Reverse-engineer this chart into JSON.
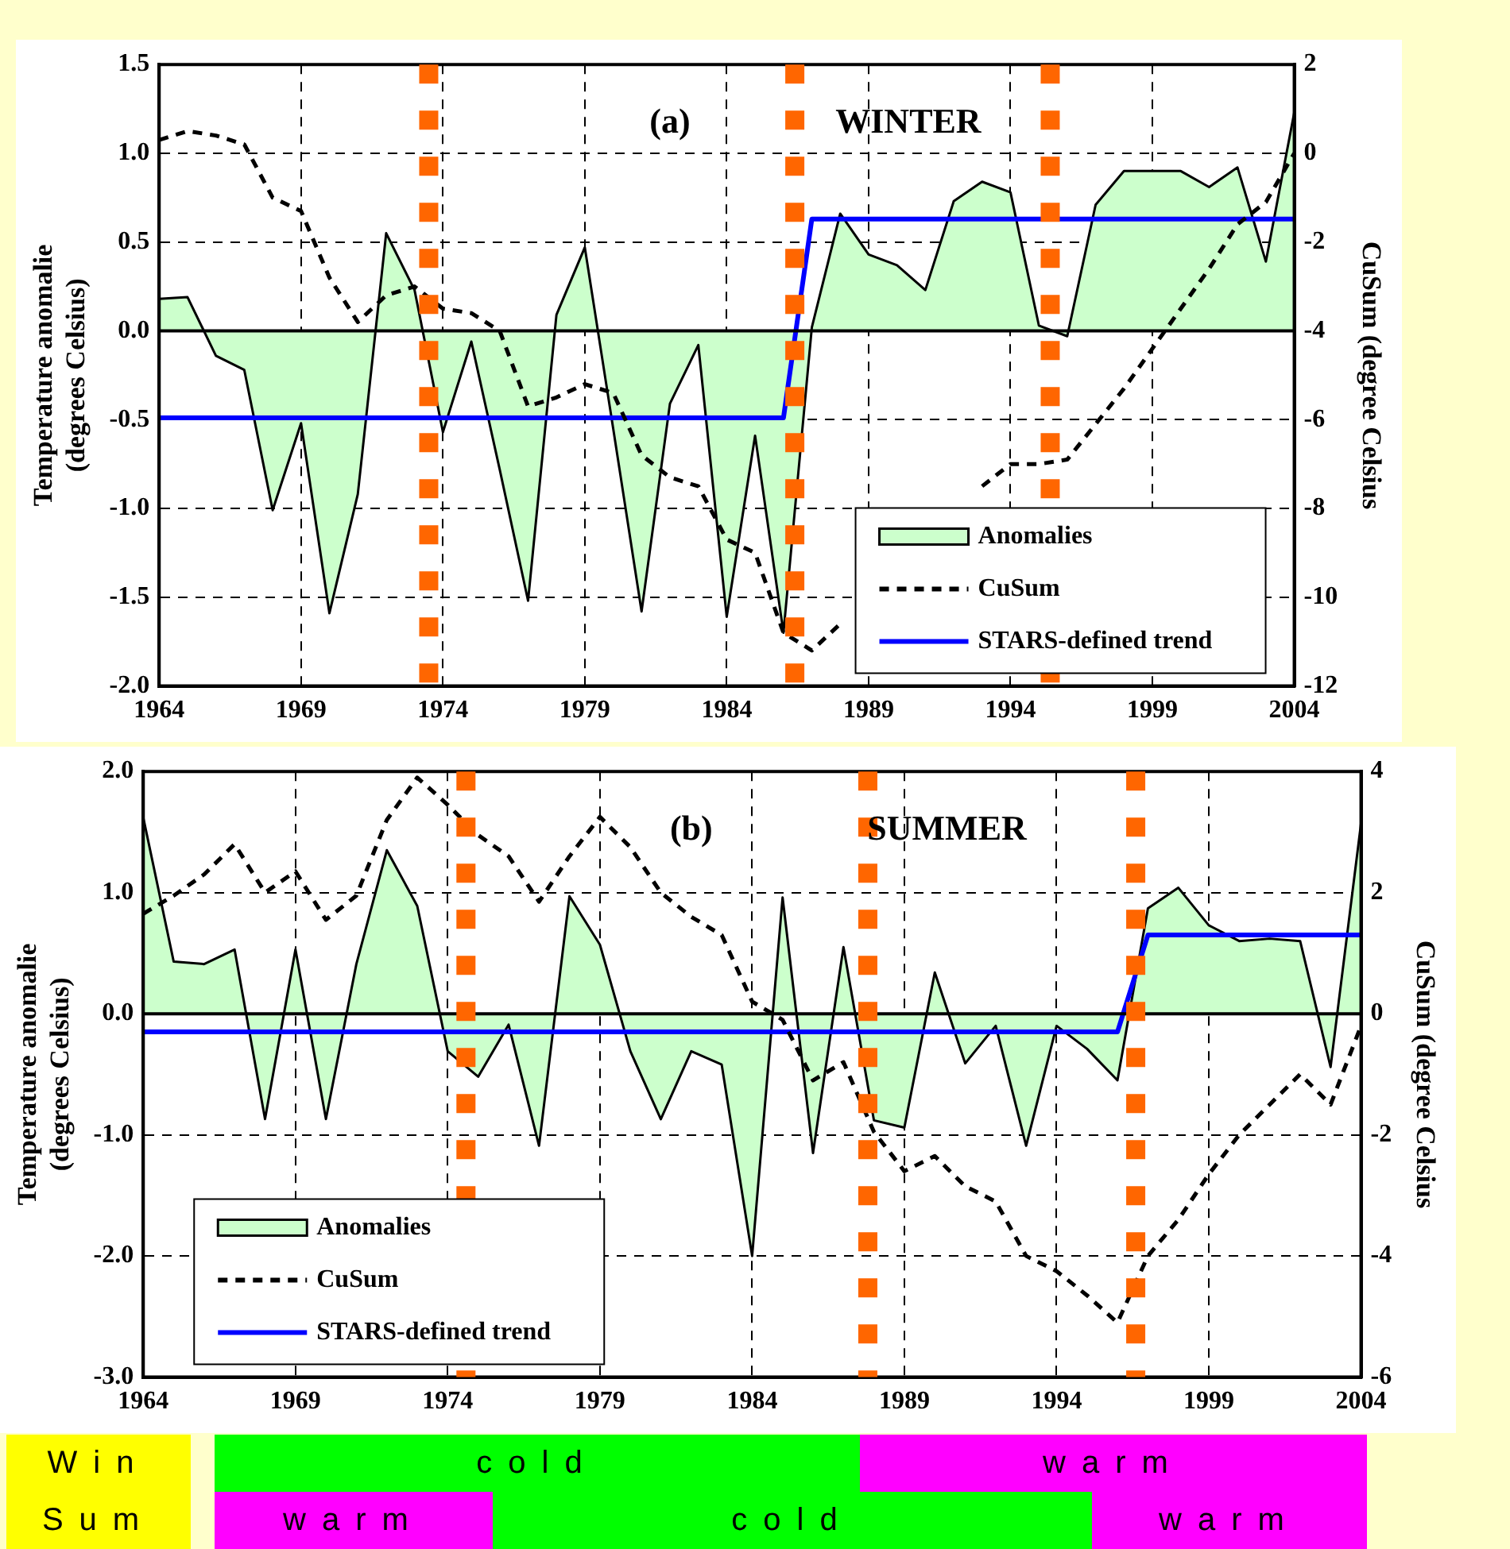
{
  "chart_data": [
    {
      "type": "line",
      "title": "(a)",
      "subtitle": "WINTER",
      "ylabel": "Temperature anomalie\n(degrees Celsius)",
      "y2label": "CuSum (degree Celsius",
      "x": [
        1964,
        1965,
        1966,
        1967,
        1968,
        1969,
        1970,
        1971,
        1972,
        1973,
        1974,
        1975,
        1976,
        1977,
        1978,
        1979,
        1980,
        1981,
        1982,
        1983,
        1984,
        1985,
        1986,
        1987,
        1988,
        1989,
        1990,
        1991,
        1992,
        1993,
        1994,
        1995,
        1996,
        1997,
        1998,
        1999,
        2000,
        2001,
        2002,
        2003,
        2004
      ],
      "xlim": [
        1964,
        2004
      ],
      "xticks": [
        1964,
        1969,
        1974,
        1979,
        1984,
        1989,
        1994,
        1999,
        2004
      ],
      "ylim": [
        -2,
        1.5
      ],
      "yticks": [
        {
          "value": -2,
          "label": "-2.0"
        },
        {
          "value": -1.5,
          "label": "-1.5"
        },
        {
          "value": -1,
          "label": "-1.0"
        },
        {
          "value": -0.5,
          "label": "-0.5"
        },
        {
          "value": 0,
          "label": "0.0"
        },
        {
          "value": 0.5,
          "label": "0.5"
        },
        {
          "value": 1,
          "label": "1.0"
        },
        {
          "value": 1.5,
          "label": "1.5"
        }
      ],
      "y2lim": [
        -12,
        2
      ],
      "y2ticks": [
        -12,
        -10,
        -8,
        -6,
        -4,
        -2,
        0,
        2
      ],
      "grid": true,
      "legend": "bottom right",
      "marker": "none",
      "series": [
        {
          "name": "Anomalies",
          "type": "area",
          "color": "#ccffcc",
          "values": [
            0.18,
            0.19,
            -0.14,
            -0.22,
            -1.01,
            -0.52,
            -1.59,
            -0.92,
            0.55,
            0.23,
            -0.57,
            -0.06,
            -0.78,
            -1.52,
            0.09,
            0.47,
            -0.55,
            -1.58,
            -0.41,
            -0.08,
            -1.61,
            -0.59,
            -1.7,
            0.02,
            0.66,
            0.43,
            0.37,
            0.23,
            0.73,
            0.84,
            0.78,
            0.03,
            -0.03,
            0.71,
            0.9,
            0.9,
            0.9,
            0.81,
            0.92,
            0.39,
            1.23
          ]
        },
        {
          "name": "CuSum",
          "type": "line",
          "axis": "y2",
          "line_style": "dashed",
          "color": "#000000",
          "values": [
            0.3,
            0.5,
            0.4,
            0.2,
            -1,
            -1.3,
            -2.8,
            -3.8,
            -3.2,
            -3,
            -3.5,
            -3.6,
            -4,
            -5.7,
            -5.5,
            -5.2,
            -5.4,
            -6.8,
            -7.3,
            -7.5,
            -8.7,
            -9,
            -10.8,
            -11.2,
            -10.6,
            null,
            null,
            null,
            null,
            -7.5,
            -7,
            -7,
            -6.9,
            -6.1,
            -5.3,
            -4.4,
            -3.5,
            -2.6,
            -1.6,
            -1.1,
            0
          ]
        },
        {
          "name": "STARS-defined trend",
          "type": "line",
          "color": "#0000ff",
          "values": [
            -0.49,
            -0.49,
            -0.49,
            -0.49,
            -0.49,
            -0.49,
            -0.49,
            -0.49,
            -0.49,
            -0.49,
            -0.49,
            -0.49,
            -0.49,
            -0.49,
            -0.49,
            -0.49,
            -0.49,
            -0.49,
            -0.49,
            -0.49,
            -0.49,
            -0.49,
            -0.49,
            0.63,
            0.63,
            0.63,
            0.63,
            0.63,
            0.63,
            0.63,
            0.63,
            0.63,
            0.63,
            0.63,
            0.63,
            0.63,
            0.63,
            0.63,
            0.63,
            0.63,
            0.63
          ]
        }
      ],
      "ref_lines": [
        {
          "axis": "y",
          "value": 0,
          "color": "#000000",
          "line_style": "solid"
        },
        {
          "axis": "x",
          "value": 1973.5,
          "color": "#ff6600",
          "line_style": "dotted"
        },
        {
          "axis": "x",
          "value": 1986.4,
          "color": "#ff6600",
          "line_style": "dotted"
        },
        {
          "axis": "x",
          "value": 1995.4,
          "color": "#ff6600",
          "line_style": "dotted"
        }
      ]
    },
    {
      "type": "line",
      "title": "(b)",
      "subtitle": "SUMMER",
      "ylabel": "Temperature anomalie\n(degrees Celsius)",
      "y2label": "CuSum (degree Celsius",
      "x": [
        1964,
        1965,
        1966,
        1967,
        1968,
        1969,
        1970,
        1971,
        1972,
        1973,
        1974,
        1975,
        1976,
        1977,
        1978,
        1979,
        1980,
        1981,
        1982,
        1983,
        1984,
        1985,
        1986,
        1987,
        1988,
        1989,
        1990,
        1991,
        1992,
        1993,
        1994,
        1995,
        1996,
        1997,
        1998,
        1999,
        2000,
        2001,
        2002,
        2003,
        2004
      ],
      "xlim": [
        1964,
        2004
      ],
      "xticks": [
        1964,
        1969,
        1974,
        1979,
        1984,
        1989,
        1994,
        1999,
        2004
      ],
      "ylim": [
        -3,
        2
      ],
      "yticks": [
        {
          "value": -3,
          "label": "-3.0"
        },
        {
          "value": -2,
          "label": "-2.0"
        },
        {
          "value": -1,
          "label": "-1.0"
        },
        {
          "value": 0,
          "label": "0.0"
        },
        {
          "value": 1,
          "label": "1.0"
        },
        {
          "value": 2,
          "label": "2.0"
        }
      ],
      "y2lim": [
        -6,
        4
      ],
      "y2ticks": [
        -6,
        -4,
        -2,
        0,
        2,
        4
      ],
      "grid": true,
      "legend": "bottom left",
      "marker": "none",
      "series": [
        {
          "name": "Anomalies",
          "type": "area",
          "color": "#ccffcc",
          "values": [
            1.62,
            0.43,
            0.41,
            0.53,
            -0.87,
            0.53,
            -0.87,
            0.41,
            1.35,
            0.89,
            -0.31,
            -0.52,
            -0.09,
            -1.09,
            0.97,
            0.57,
            -0.31,
            -0.87,
            -0.31,
            -0.42,
            -2,
            0.96,
            -1.15,
            0.55,
            -0.88,
            -0.94,
            0.34,
            -0.41,
            -0.1,
            -1.09,
            -0.1,
            -0.29,
            -0.55,
            0.87,
            1.04,
            0.73,
            0.6,
            0.62,
            0.6,
            -0.44,
            1.57
          ]
        },
        {
          "name": "CuSum",
          "type": "line",
          "axis": "y2",
          "line_style": "dashed",
          "color": "#000000",
          "values": [
            1.65,
            1.95,
            2.3,
            2.8,
            2,
            2.35,
            1.55,
            1.95,
            3.2,
            3.9,
            3.45,
            2.95,
            2.6,
            1.85,
            2.6,
            3.25,
            2.75,
            2,
            1.6,
            1.3,
            0.2,
            -0.1,
            -1.1,
            -0.8,
            -1.95,
            -2.6,
            -2.35,
            -2.85,
            -3.1,
            -4,
            -4.25,
            -4.65,
            -5.1,
            -4,
            -3.4,
            -2.65,
            -2,
            -1.5,
            -1,
            -1.5,
            -0.2
          ]
        },
        {
          "name": "STARS-defined trend",
          "type": "line",
          "color": "#0000ff",
          "values": [
            -0.15,
            -0.15,
            -0.15,
            -0.15,
            -0.15,
            -0.15,
            -0.15,
            -0.15,
            -0.15,
            -0.15,
            -0.15,
            -0.15,
            -0.15,
            -0.15,
            -0.15,
            -0.15,
            -0.15,
            -0.15,
            -0.15,
            -0.15,
            -0.15,
            -0.15,
            -0.15,
            -0.15,
            -0.15,
            -0.15,
            -0.15,
            -0.15,
            -0.15,
            -0.15,
            -0.15,
            -0.15,
            -0.15,
            0.65,
            0.65,
            0.65,
            0.65,
            0.65,
            0.65,
            0.65,
            0.65
          ]
        }
      ],
      "ref_lines": [
        {
          "axis": "y",
          "value": 0,
          "color": "#000000",
          "line_style": "solid"
        },
        {
          "axis": "x",
          "value": 1974.6,
          "color": "#ff6600",
          "line_style": "dotted"
        },
        {
          "axis": "x",
          "value": 1987.8,
          "color": "#ff6600",
          "line_style": "dotted"
        },
        {
          "axis": "x",
          "value": 1996.6,
          "color": "#ff6600",
          "line_style": "dotted"
        }
      ]
    },
    {
      "type": "other",
      "categories": [
        "Win",
        "cold",
        "warm",
        "Sum",
        "warm",
        "cold",
        "warm"
      ],
      "colors": [
        "#ffff00",
        "#00ff00",
        "#ff00ff",
        "#ffff00",
        "#ff00ff",
        "#00ff00",
        "#ff00ff"
      ]
    }
  ]
}
